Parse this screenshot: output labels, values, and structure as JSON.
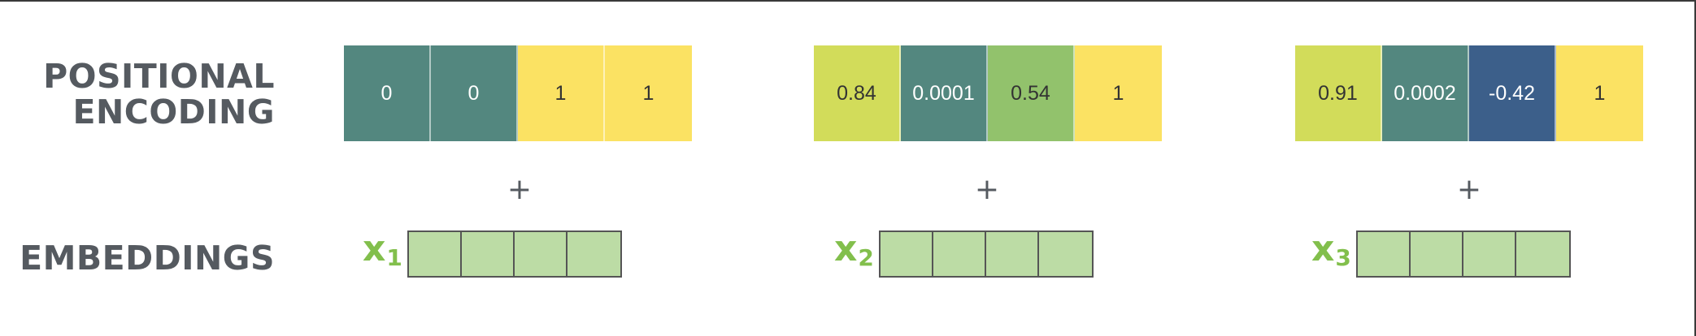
{
  "labels": {
    "positional_encoding_line1": "POSITIONAL",
    "positional_encoding_line2": "ENCODING",
    "embeddings": "EMBEDDINGS"
  },
  "colors": {
    "teal": "#53877f",
    "yellow": "#fbe263",
    "lime": "#d2dc5a",
    "green": "#92c26c",
    "navy": "#3c5f8a",
    "embedding": "#bcdca5",
    "x_label": "#82bf4c"
  },
  "positions": [
    {
      "encoding": [
        {
          "value": "0",
          "color": "teal"
        },
        {
          "value": "0",
          "color": "teal"
        },
        {
          "value": "1",
          "color": "yellow"
        },
        {
          "value": "1",
          "color": "yellow"
        }
      ],
      "plus": "+",
      "x_base": "x",
      "x_sub": "1"
    },
    {
      "encoding": [
        {
          "value": "0.84",
          "color": "lime"
        },
        {
          "value": "0.0001",
          "color": "teal"
        },
        {
          "value": "0.54",
          "color": "green"
        },
        {
          "value": "1",
          "color": "yellow"
        }
      ],
      "plus": "+",
      "x_base": "x",
      "x_sub": "2"
    },
    {
      "encoding": [
        {
          "value": "0.91",
          "color": "lime"
        },
        {
          "value": "0.0002",
          "color": "teal"
        },
        {
          "value": "-0.42",
          "color": "navy"
        },
        {
          "value": "1",
          "color": "yellow"
        }
      ],
      "plus": "+",
      "x_base": "x",
      "x_sub": "3"
    }
  ]
}
